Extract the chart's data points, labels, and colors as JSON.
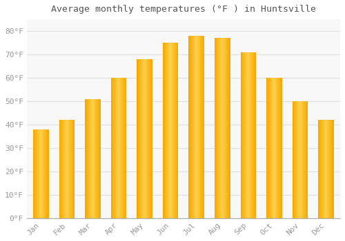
{
  "title": "Average monthly temperatures (°F ) in Huntsville",
  "months": [
    "Jan",
    "Feb",
    "Mar",
    "Apr",
    "May",
    "Jun",
    "Jul",
    "Aug",
    "Sep",
    "Oct",
    "Nov",
    "Dec"
  ],
  "values": [
    38,
    42,
    51,
    60,
    68,
    75,
    78,
    77,
    71,
    60,
    50,
    42
  ],
  "bar_color_center": "#FFD04A",
  "bar_color_edge": "#F5A800",
  "background_color": "#FFFFFF",
  "plot_bg_color": "#F8F8F8",
  "grid_color": "#E0E0E0",
  "text_color": "#999999",
  "title_color": "#555555",
  "ylim": [
    0,
    85
  ],
  "yticks": [
    0,
    10,
    20,
    30,
    40,
    50,
    60,
    70,
    80
  ],
  "title_fontsize": 9.5,
  "tick_fontsize": 8,
  "bar_width": 0.6
}
